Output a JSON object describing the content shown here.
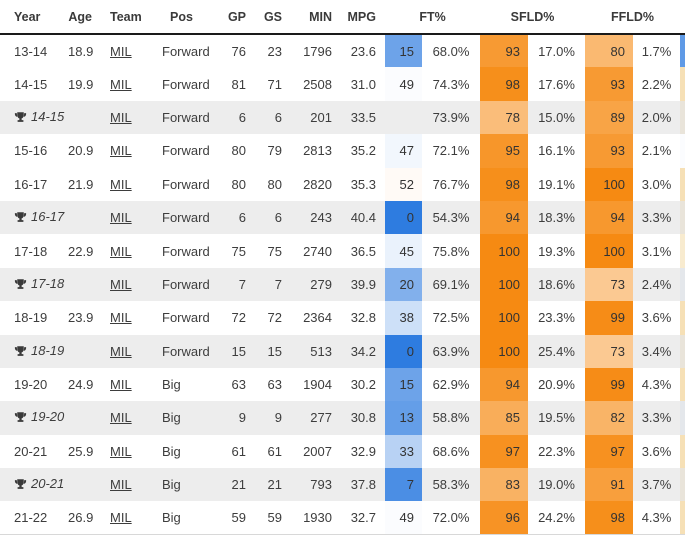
{
  "table": {
    "columns": [
      "Year",
      "Age",
      "Team",
      "Pos",
      "GP",
      "GS",
      "MIN",
      "MPG",
      "FT%",
      "SFLD%",
      "FFLD%"
    ],
    "rows": [
      {
        "playoff": false,
        "year": "13-14",
        "age": "18.9",
        "team": "MIL",
        "pos": "Forward",
        "gp": "76",
        "gs": "23",
        "min": "1796",
        "mpg": "23.6",
        "ft_rank": 15,
        "ft_pct": "68.0%",
        "sfld_rank": 93,
        "sfld_pct": "17.0%",
        "ffld_rank": 80,
        "ffld_pct": "1.7%",
        "edge_color": "#5f9ae6"
      },
      {
        "playoff": false,
        "year": "14-15",
        "age": "19.9",
        "team": "MIL",
        "pos": "Forward",
        "gp": "81",
        "gs": "71",
        "min": "2508",
        "mpg": "31.0",
        "ft_rank": 49,
        "ft_pct": "74.3%",
        "sfld_rank": 98,
        "sfld_pct": "17.6%",
        "ffld_rank": 93,
        "ffld_pct": "2.2%",
        "edge_color": "#f6e0b6"
      },
      {
        "playoff": true,
        "year": "14-15",
        "age": "",
        "team": "MIL",
        "pos": "Forward",
        "gp": "6",
        "gs": "6",
        "min": "201",
        "mpg": "33.5",
        "ft_rank": null,
        "ft_pct": "73.9%",
        "sfld_rank": 78,
        "sfld_pct": "15.0%",
        "ffld_rank": 89,
        "ffld_pct": "2.0%",
        "edge_color": "#e9e4da"
      },
      {
        "playoff": false,
        "year": "15-16",
        "age": "20.9",
        "team": "MIL",
        "pos": "Forward",
        "gp": "80",
        "gs": "79",
        "min": "2813",
        "mpg": "35.2",
        "ft_rank": 47,
        "ft_pct": "72.1%",
        "sfld_rank": 95,
        "sfld_pct": "16.1%",
        "ffld_rank": 93,
        "ffld_pct": "2.1%",
        "edge_color": "#fbfcfe"
      },
      {
        "playoff": false,
        "year": "16-17",
        "age": "21.9",
        "team": "MIL",
        "pos": "Forward",
        "gp": "80",
        "gs": "80",
        "min": "2820",
        "mpg": "35.3",
        "ft_rank": 52,
        "ft_pct": "76.7%",
        "sfld_rank": 98,
        "sfld_pct": "19.1%",
        "ffld_rank": 100,
        "ffld_pct": "3.0%",
        "edge_color": "#f6e0b6"
      },
      {
        "playoff": true,
        "year": "16-17",
        "age": "",
        "team": "MIL",
        "pos": "Forward",
        "gp": "6",
        "gs": "6",
        "min": "243",
        "mpg": "40.4",
        "ft_rank": 0,
        "ft_pct": "54.3%",
        "sfld_rank": 94,
        "sfld_pct": "18.3%",
        "ffld_rank": 94,
        "ffld_pct": "3.3%",
        "edge_color": "#e9e4da"
      },
      {
        "playoff": false,
        "year": "17-18",
        "age": "22.9",
        "team": "MIL",
        "pos": "Forward",
        "gp": "75",
        "gs": "75",
        "min": "2740",
        "mpg": "36.5",
        "ft_rank": 45,
        "ft_pct": "75.8%",
        "sfld_rank": 100,
        "sfld_pct": "19.3%",
        "ffld_rank": 100,
        "ffld_pct": "3.1%",
        "edge_color": "#f8ebcf"
      },
      {
        "playoff": true,
        "year": "17-18",
        "age": "",
        "team": "MIL",
        "pos": "Forward",
        "gp": "7",
        "gs": "7",
        "min": "279",
        "mpg": "39.9",
        "ft_rank": 20,
        "ft_pct": "69.1%",
        "sfld_rank": 100,
        "sfld_pct": "18.6%",
        "ffld_rank": 73,
        "ffld_pct": "2.4%",
        "edge_color": "#e4e7eb"
      },
      {
        "playoff": false,
        "year": "18-19",
        "age": "23.9",
        "team": "MIL",
        "pos": "Forward",
        "gp": "72",
        "gs": "72",
        "min": "2364",
        "mpg": "32.8",
        "ft_rank": 38,
        "ft_pct": "72.5%",
        "sfld_rank": 100,
        "sfld_pct": "23.3%",
        "ffld_rank": 99,
        "ffld_pct": "3.6%",
        "edge_color": "#f6e0b6"
      },
      {
        "playoff": true,
        "year": "18-19",
        "age": "",
        "team": "MIL",
        "pos": "Forward",
        "gp": "15",
        "gs": "15",
        "min": "513",
        "mpg": "34.2",
        "ft_rank": 0,
        "ft_pct": "63.9%",
        "sfld_rank": 100,
        "sfld_pct": "25.4%",
        "ffld_rank": 73,
        "ffld_pct": "3.4%",
        "edge_color": "#e9e4da"
      },
      {
        "playoff": false,
        "year": "19-20",
        "age": "24.9",
        "team": "MIL",
        "pos": "Big",
        "gp": "63",
        "gs": "63",
        "min": "1904",
        "mpg": "30.2",
        "ft_rank": 15,
        "ft_pct": "62.9%",
        "sfld_rank": 94,
        "sfld_pct": "20.9%",
        "ffld_rank": 99,
        "ffld_pct": "4.3%",
        "edge_color": "#f6e0b6"
      },
      {
        "playoff": true,
        "year": "19-20",
        "age": "",
        "team": "MIL",
        "pos": "Big",
        "gp": "9",
        "gs": "9",
        "min": "277",
        "mpg": "30.8",
        "ft_rank": 13,
        "ft_pct": "58.8%",
        "sfld_rank": 85,
        "sfld_pct": "19.5%",
        "ffld_rank": 82,
        "ffld_pct": "3.3%",
        "edge_color": "#e4e7eb"
      },
      {
        "playoff": false,
        "year": "20-21",
        "age": "25.9",
        "team": "MIL",
        "pos": "Big",
        "gp": "61",
        "gs": "61",
        "min": "2007",
        "mpg": "32.9",
        "ft_rank": 33,
        "ft_pct": "68.6%",
        "sfld_rank": 97,
        "sfld_pct": "22.3%",
        "ffld_rank": 97,
        "ffld_pct": "3.6%",
        "edge_color": "#f6e0b6"
      },
      {
        "playoff": true,
        "year": "20-21",
        "age": "",
        "team": "MIL",
        "pos": "Big",
        "gp": "21",
        "gs": "21",
        "min": "793",
        "mpg": "37.8",
        "ft_rank": 7,
        "ft_pct": "58.3%",
        "sfld_rank": 83,
        "sfld_pct": "19.0%",
        "ffld_rank": 91,
        "ffld_pct": "3.7%",
        "edge_color": "#e9e4da"
      },
      {
        "playoff": false,
        "year": "21-22",
        "age": "26.9",
        "team": "MIL",
        "pos": "Big",
        "gp": "59",
        "gs": "59",
        "min": "1930",
        "mpg": "32.7",
        "ft_rank": 49,
        "ft_pct": "72.0%",
        "sfld_rank": 96,
        "sfld_pct": "24.2%",
        "ffld_rank": 98,
        "ffld_pct": "4.3%",
        "edge_color": "#f6e0b6"
      }
    ]
  },
  "colors": {
    "rank_low": "#2e7ce0",
    "rank_mid": "#ffffff",
    "rank_high": "#f68a12",
    "playoff_row_bg": "#ededed",
    "header_line": "#1a1a1a",
    "text": "#3d3d3d"
  },
  "icons": {
    "playoff_marker": "trophy-icon"
  }
}
